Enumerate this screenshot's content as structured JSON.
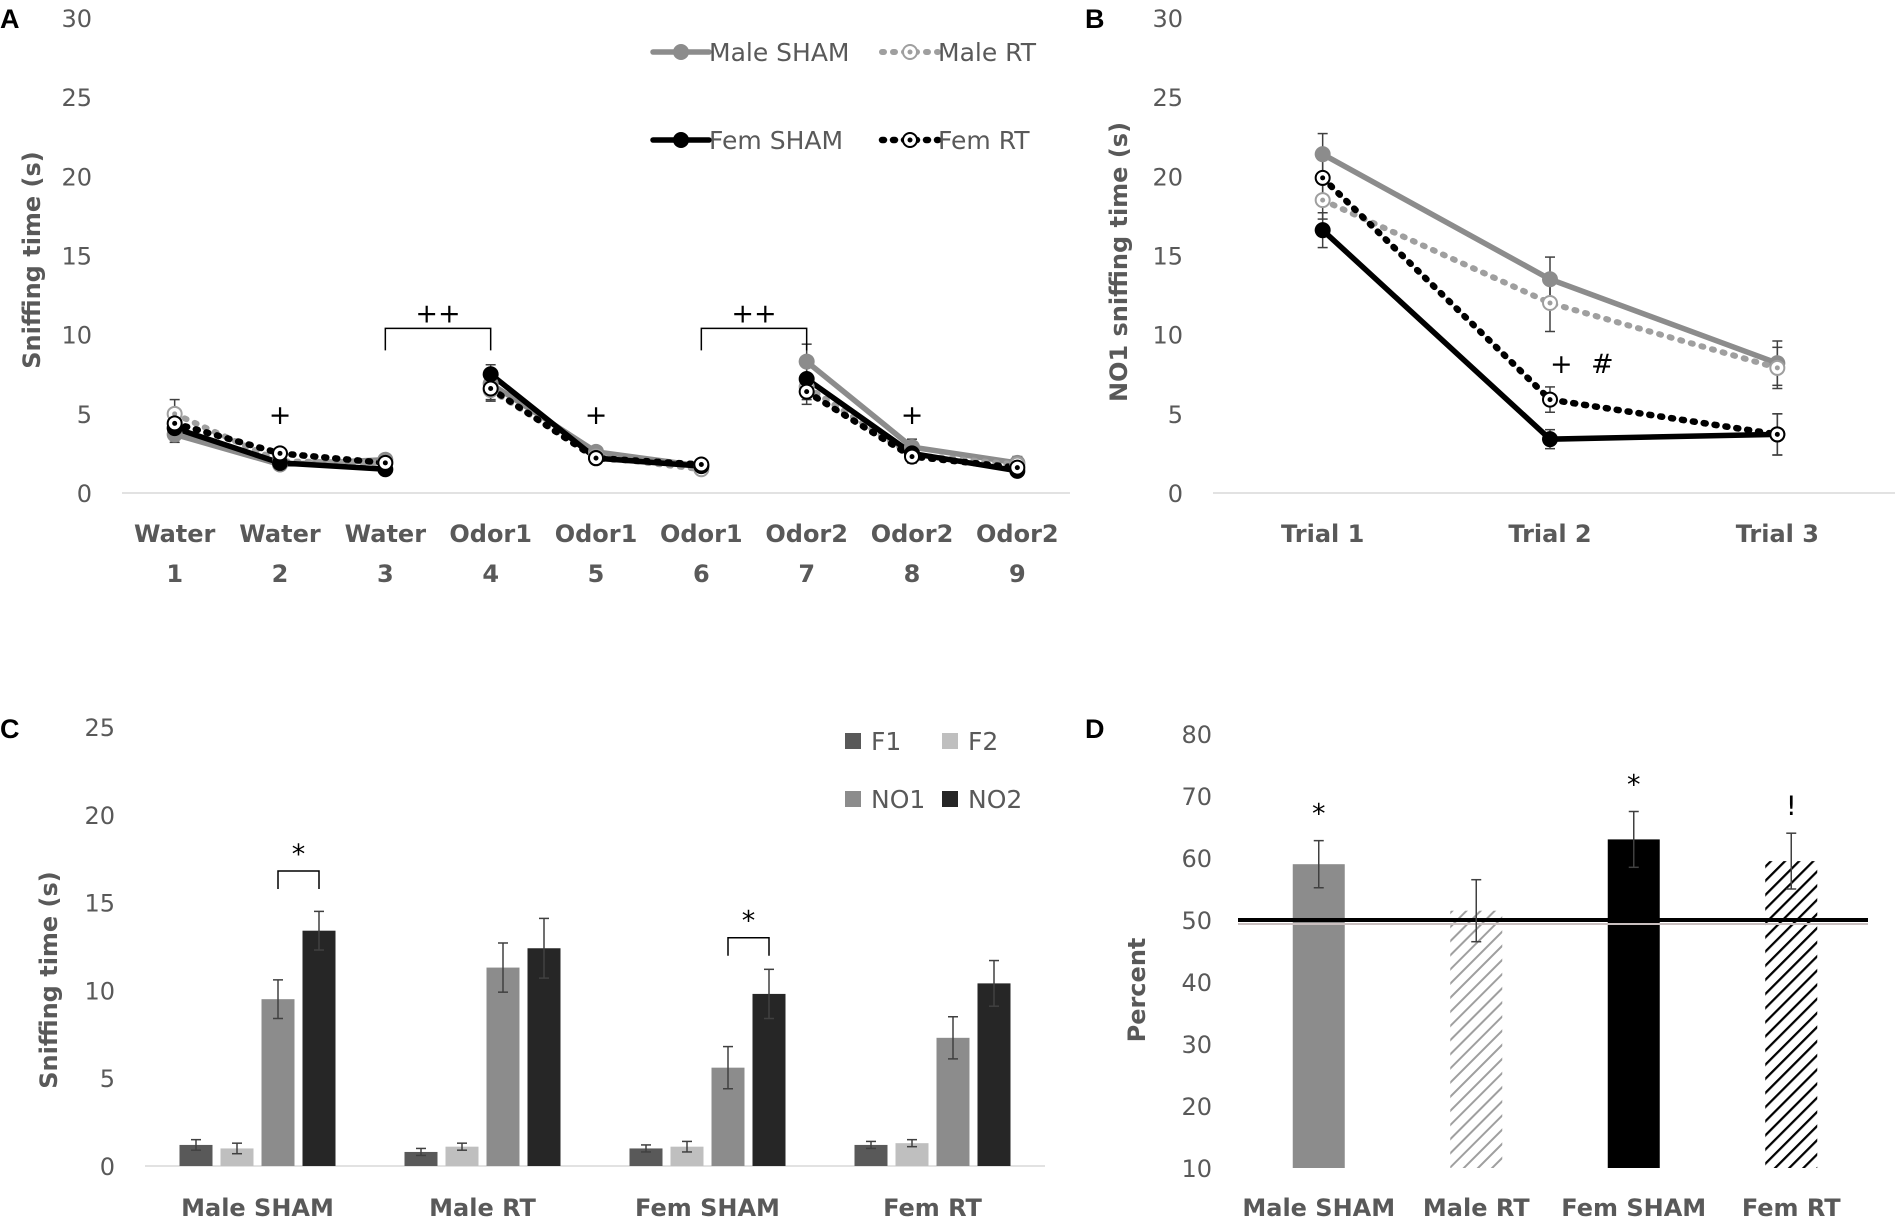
{
  "figure": {
    "panel_labels": [
      "A",
      "B",
      "C",
      "D"
    ]
  },
  "colors": {
    "male_sham": "#8c8c8c",
    "male_rt": "#9f9f9f",
    "fem_sham": "#000000",
    "fem_rt": "#000000",
    "f1": "#595959",
    "f2": "#bfbfbf",
    "no1": "#8c8c8c",
    "no2": "#262626",
    "axis": "#d9d9d9",
    "text": "#595959"
  },
  "chart_data": [
    {
      "id": "A",
      "type": "line",
      "ylabel": "Sniffing time (s)",
      "ylim": [
        0,
        30
      ],
      "yticks": [
        "0",
        "5",
        "10",
        "15",
        "20",
        "25",
        "30"
      ],
      "categories": [
        [
          "Water",
          "1"
        ],
        [
          "Water",
          "2"
        ],
        [
          "Water",
          "3"
        ],
        [
          "Odor1",
          "4"
        ],
        [
          "Odor1",
          "5"
        ],
        [
          "Odor1",
          "6"
        ],
        [
          "Odor2",
          "7"
        ],
        [
          "Odor2",
          "8"
        ],
        [
          "Odor2",
          "9"
        ]
      ],
      "segments": [
        [
          0,
          2
        ],
        [
          3,
          5
        ],
        [
          6,
          8
        ]
      ],
      "series": [
        {
          "name": "Male SHAM",
          "key": "male_sham",
          "style": "solid-gray",
          "values": [
            3.7,
            1.8,
            2.1,
            6.9,
            2.6,
            1.7,
            8.3,
            2.9,
            1.9
          ],
          "errors": [
            0.5,
            0.3,
            0.3,
            0.6,
            0.3,
            0.2,
            1.1,
            0.5,
            0.4
          ]
        },
        {
          "name": "Male RT",
          "key": "male_rt",
          "style": "dotted-gray",
          "values": [
            5.0,
            2.0,
            1.9,
            6.5,
            2.3,
            1.5,
            6.7,
            2.4,
            1.8
          ],
          "errors": [
            0.9,
            0.3,
            0.3,
            0.7,
            0.3,
            0.2,
            0.8,
            0.4,
            0.4
          ]
        },
        {
          "name": "Fem SHAM",
          "key": "fem_sham",
          "style": "solid-black",
          "values": [
            4.1,
            1.9,
            1.5,
            7.5,
            2.2,
            1.7,
            7.2,
            2.5,
            1.4
          ],
          "errors": [
            0.5,
            0.3,
            0.2,
            0.6,
            0.3,
            0.2,
            0.8,
            0.4,
            0.3
          ]
        },
        {
          "name": "Fem RT",
          "key": "fem_rt",
          "style": "dotted-black",
          "values": [
            4.4,
            2.5,
            1.9,
            6.6,
            2.2,
            1.8,
            6.4,
            2.3,
            1.6
          ],
          "errors": [
            0.6,
            0.3,
            0.3,
            0.7,
            0.3,
            0.2,
            0.8,
            0.4,
            0.3
          ]
        }
      ],
      "annotations": [
        {
          "text": "+",
          "x": 1,
          "y": 5.0
        },
        {
          "text": "+",
          "x": 4,
          "y": 5.0
        },
        {
          "text": "+",
          "x": 7,
          "y": 5.0
        }
      ],
      "brackets": [
        {
          "from": 2,
          "to": 3,
          "y": 10.4,
          "text": "++"
        },
        {
          "from": 5,
          "to": 6,
          "y": 10.4,
          "text": "++"
        }
      ],
      "legend": [
        "Male SHAM",
        "Male RT",
        "Fem SHAM",
        "Fem RT"
      ]
    },
    {
      "id": "B",
      "type": "line",
      "ylabel": "NO1 sniffing time (s)",
      "ylim": [
        0,
        30
      ],
      "yticks": [
        "0",
        "5",
        "10",
        "15",
        "20",
        "25",
        "30"
      ],
      "categories": [
        [
          "Trial 1"
        ],
        [
          "Trial 2"
        ],
        [
          "Trial 3"
        ]
      ],
      "series": [
        {
          "name": "Male SHAM",
          "key": "male_sham",
          "style": "solid-gray",
          "values": [
            21.4,
            13.5,
            8.2
          ],
          "errors": [
            1.3,
            1.4,
            1.4
          ]
        },
        {
          "name": "Male RT",
          "key": "male_rt",
          "style": "dotted-gray",
          "values": [
            18.5,
            12.0,
            7.9
          ],
          "errors": [
            1.2,
            1.8,
            1.3
          ]
        },
        {
          "name": "Fem SHAM",
          "key": "fem_sham",
          "style": "solid-black",
          "values": [
            16.6,
            3.4,
            3.7
          ],
          "errors": [
            1.1,
            0.6,
            1.3
          ]
        },
        {
          "name": "Fem RT",
          "key": "fem_rt",
          "style": "dotted-black",
          "values": [
            19.9,
            5.9,
            3.7
          ],
          "errors": [
            1.2,
            0.8,
            1.3
          ]
        }
      ],
      "annotations": [
        {
          "text": "+",
          "x": 1.05,
          "y": 8.2
        },
        {
          "text": "#",
          "x": 1.23,
          "y": 8.2
        }
      ]
    },
    {
      "id": "C",
      "type": "bar",
      "ylabel": "Sniffing time (s)",
      "ylim": [
        0,
        25
      ],
      "yticks": [
        "0",
        "5",
        "10",
        "15",
        "20",
        "25"
      ],
      "categories": [
        "Male SHAM",
        "Male RT",
        "Fem SHAM",
        "Fem RT"
      ],
      "series": [
        {
          "name": "F1",
          "key": "f1",
          "values": [
            1.2,
            0.8,
            1.0,
            1.2
          ],
          "errors": [
            0.3,
            0.2,
            0.2,
            0.2
          ]
        },
        {
          "name": "F2",
          "key": "f2",
          "values": [
            1.0,
            1.1,
            1.1,
            1.3
          ],
          "errors": [
            0.3,
            0.2,
            0.3,
            0.2
          ]
        },
        {
          "name": "NO1",
          "key": "no1",
          "values": [
            9.5,
            11.3,
            5.6,
            7.3
          ],
          "errors": [
            1.1,
            1.4,
            1.2,
            1.2
          ]
        },
        {
          "name": "NO2",
          "key": "no2",
          "values": [
            13.4,
            12.4,
            9.8,
            10.4
          ],
          "errors": [
            1.1,
            1.7,
            1.4,
            1.3
          ]
        }
      ],
      "brackets": [
        {
          "category": 0,
          "from_series": 2,
          "to_series": 3,
          "y": 16.8,
          "text": "*"
        },
        {
          "category": 2,
          "from_series": 2,
          "to_series": 3,
          "y": 13.0,
          "text": "*"
        }
      ],
      "legend": [
        "F1",
        "F2",
        "NO1",
        "NO2"
      ]
    },
    {
      "id": "D",
      "type": "bar",
      "ylabel": "Percent",
      "ylim": [
        10,
        80
      ],
      "yticks": [
        "10",
        "20",
        "30",
        "40",
        "50",
        "60",
        "70",
        "80"
      ],
      "categories": [
        "Male SHAM",
        "Male RT",
        "Fem SHAM",
        "Fem RT"
      ],
      "values": [
        59.0,
        51.5,
        63.0,
        59.5
      ],
      "errors": [
        3.8,
        5.0,
        4.5,
        4.5
      ],
      "fills": [
        "solid-gray",
        "hatch-gray",
        "solid-black",
        "hatch-black"
      ],
      "reference_line": 50,
      "annotations": [
        "*",
        "",
        "*",
        "!"
      ]
    }
  ]
}
